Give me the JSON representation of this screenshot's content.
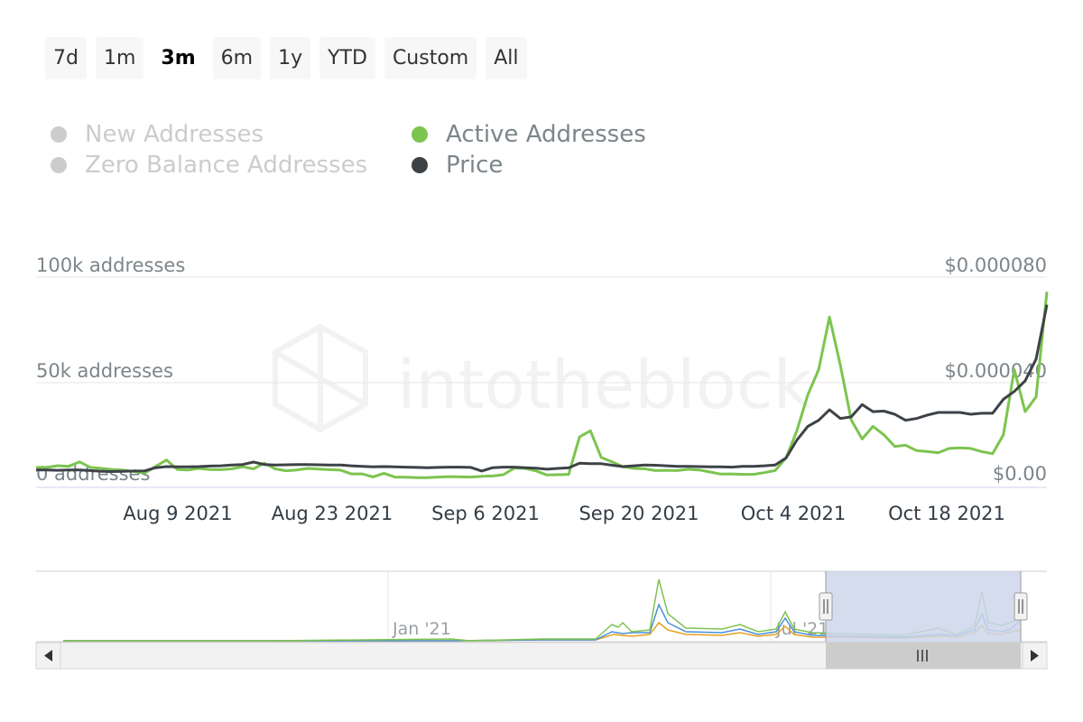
{
  "range_selector": {
    "buttons": [
      {
        "label": "7d"
      },
      {
        "label": "1m"
      },
      {
        "label": "3m"
      },
      {
        "label": "6m"
      },
      {
        "label": "1y"
      },
      {
        "label": "YTD"
      },
      {
        "label": "Custom"
      },
      {
        "label": "All"
      }
    ],
    "active": "3m"
  },
  "legend": {
    "items": [
      {
        "label": "New Addresses",
        "enabled": false,
        "color": "#cccccc"
      },
      {
        "label": "Zero Balance Addresses",
        "enabled": false,
        "color": "#cccccc"
      },
      {
        "label": "Active Addresses",
        "enabled": true,
        "color": "#7cc44f"
      },
      {
        "label": "Price",
        "enabled": true,
        "color": "#3d4247"
      }
    ]
  },
  "watermark": "intotheblock",
  "navigator": {
    "labels": [
      "Jan '21",
      "Jul '21"
    ]
  },
  "chart_data": {
    "type": "line",
    "x_start": "2021-07-27",
    "x_ticks": [
      "Aug 9 2021",
      "Aug 23 2021",
      "Sep 6 2021",
      "Sep 20 2021",
      "Oct 4 2021",
      "Oct 18 2021"
    ],
    "y_left": {
      "ticks": [
        "0 addresses",
        "50k addresses",
        "100k addresses"
      ],
      "range": [
        0,
        100000
      ]
    },
    "y_right": {
      "ticks": [
        "$0.00",
        "$0.000040",
        "$0.000080"
      ],
      "range": [
        0,
        8e-05
      ]
    },
    "grid": true,
    "series": [
      {
        "name": "Active Addresses",
        "axis": "left",
        "color": "#7cc44f",
        "values": [
          9500,
          9500,
          10300,
          10000,
          12100,
          9500,
          9000,
          8500,
          8200,
          7500,
          6800,
          10000,
          13000,
          8500,
          8300,
          9000,
          8500,
          8400,
          8800,
          9800,
          8800,
          11500,
          8800,
          7900,
          8300,
          9000,
          8700,
          8400,
          8200,
          6400,
          6400,
          5000,
          6700,
          4900,
          4800,
          4600,
          4600,
          4900,
          5100,
          5000,
          4900,
          5300,
          5400,
          6000,
          9200,
          9000,
          7800,
          5900,
          6000,
          6200,
          24000,
          26900,
          14200,
          12100,
          9800,
          9000,
          8800,
          8000,
          8100,
          8000,
          8600,
          8300,
          7300,
          6300,
          6400,
          6200,
          6200,
          7000,
          8000,
          14000,
          27000,
          44000,
          56000,
          81000,
          58000,
          32000,
          23000,
          29000,
          25000,
          19500,
          20000,
          17500,
          17000,
          16500,
          18500,
          18800,
          18500,
          17000,
          16000,
          25000,
          56000,
          36000,
          43000,
          93000
        ]
      },
      {
        "name": "Price",
        "axis": "right",
        "color": "#3d4247",
        "values": [
          6.6e-06,
          6.6e-06,
          6.5e-06,
          6.6e-06,
          6.6e-06,
          6.4e-06,
          6.1e-06,
          6e-06,
          6.1e-06,
          6.2e-06,
          6.3e-06,
          7.5e-06,
          7.9e-06,
          7.8e-06,
          7.8e-06,
          7.9e-06,
          8.1e-06,
          8.2e-06,
          8.5e-06,
          8.7e-06,
          9.6e-06,
          8.7e-06,
          8.5e-06,
          8.6e-06,
          8.7e-06,
          8.7e-06,
          8.6e-06,
          8.5e-06,
          8.5e-06,
          8.2e-06,
          8e-06,
          7.8e-06,
          7.9e-06,
          7.8e-06,
          7.7e-06,
          7.6e-06,
          7.5e-06,
          7.6e-06,
          7.7e-06,
          7.7e-06,
          7.6e-06,
          6.2e-06,
          7.5e-06,
          7.7e-06,
          7.7e-06,
          7.5e-06,
          7.3e-06,
          6.9e-06,
          7.2e-06,
          7.4e-06,
          9.2e-06,
          9e-06,
          9e-06,
          8.4e-06,
          7.9e-06,
          8.2e-06,
          8.5e-06,
          8.4e-06,
          8.2e-06,
          8e-06,
          8e-06,
          7.9e-06,
          7.8e-06,
          7.8e-06,
          7.7e-06,
          8e-06,
          8e-06,
          8.2e-06,
          8.5e-06,
          1.12e-05,
          1.8e-05,
          2.32e-05,
          2.55e-05,
          2.95e-05,
          2.62e-05,
          2.68e-05,
          3.15e-05,
          2.88e-05,
          2.9e-05,
          2.78e-05,
          2.55e-05,
          2.62e-05,
          2.75e-05,
          2.85e-05,
          2.85e-05,
          2.85e-05,
          2.78e-05,
          2.82e-05,
          2.82e-05,
          3.35e-05,
          3.65e-05,
          4.05e-05,
          4.88e-05,
          6.95e-05
        ]
      }
    ]
  }
}
